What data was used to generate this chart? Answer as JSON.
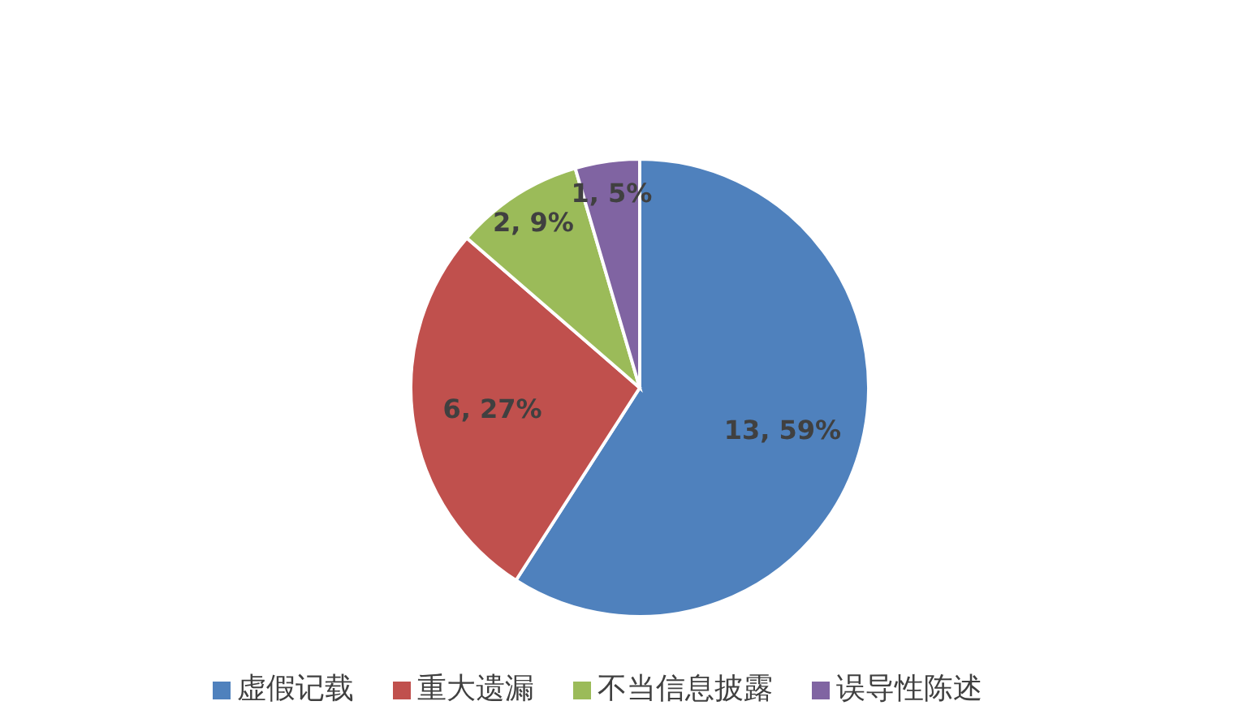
{
  "chart_data": {
    "type": "pie",
    "categories": [
      "虚假记载",
      "重大遗漏",
      "不当信息披露",
      "误导性陈述"
    ],
    "values": [
      13,
      6,
      2,
      1
    ],
    "colors": [
      "#4f81bd",
      "#c0504d",
      "#9bbb59",
      "#8064a2"
    ],
    "value_labels": [
      "13, 59%",
      "6, 27%",
      "2, 9%",
      "1, 5%"
    ],
    "legend": "bottom"
  }
}
